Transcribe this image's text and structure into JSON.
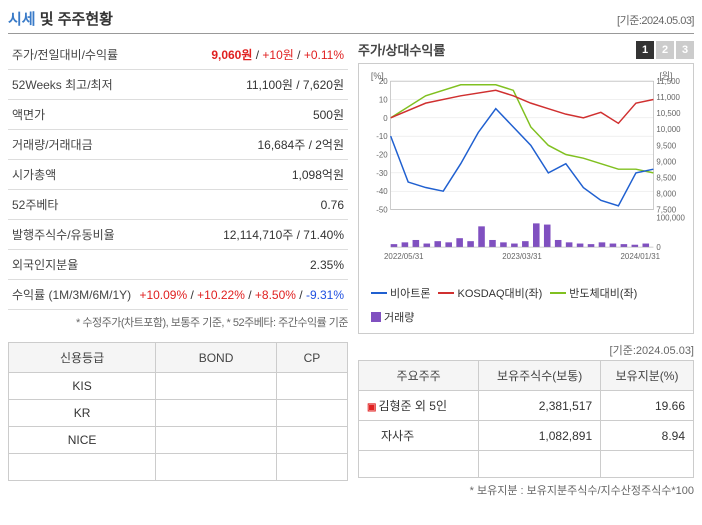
{
  "header": {
    "title_accent": "시세",
    "title_rest": " 및 주주현황",
    "date_label": "[기준:2024.05.03]"
  },
  "price_table": {
    "rows": [
      {
        "label": "주가/전일대비/수익률",
        "price": "9,060원",
        "change": "+10원",
        "pct": "+0.11%",
        "color": "red"
      },
      {
        "label": "52Weeks 최고/최저",
        "value": "11,100원 / 7,620원"
      },
      {
        "label": "액면가",
        "value": "500원"
      },
      {
        "label": "거래량/거래대금",
        "value": "16,684주 / 2억원"
      },
      {
        "label": "시가총액",
        "value": "1,098억원"
      },
      {
        "label": "52주베타",
        "value": "0.76"
      },
      {
        "label": "발행주식수/유동비율",
        "value": "12,114,710주 / 71.40%"
      },
      {
        "label": "외국인지분율",
        "value": "2.35%"
      },
      {
        "label": "수익률 (1M/3M/6M/1Y)",
        "r1": "+10.09%",
        "r2": "+10.22%",
        "r3": "+8.50%",
        "r4": "-9.31%"
      }
    ],
    "footnote": "* 수정주가(차트포함), 보통주 기준, * 52주베타: 주간수익률 기준"
  },
  "chart": {
    "title": "주가/상대수익률",
    "tabs": [
      "1",
      "2",
      "3"
    ],
    "active_tab": 0,
    "left_axis_label": "[%]",
    "right_axis_label": "[원]",
    "left_ticks": [
      20,
      10,
      0,
      -10,
      -20,
      -30,
      -40,
      -50
    ],
    "right_ticks": [
      "11,500",
      "11,000",
      "10,500",
      "10,000",
      "9,500",
      "9,000",
      "8,500",
      "8,000",
      "7,500"
    ],
    "volume_ticks": [
      "100,000",
      "0"
    ],
    "x_labels": [
      "2022/05/31",
      "2023/03/31",
      "2024/01/31"
    ],
    "grid_color": "#e0e0e0",
    "bg_color": "#ffffff",
    "series": {
      "stock": {
        "name": "비아트론",
        "color": "#2060d0",
        "points": [
          [
            0,
            -10
          ],
          [
            8,
            -35
          ],
          [
            16,
            -38
          ],
          [
            24,
            -40
          ],
          [
            32,
            -25
          ],
          [
            40,
            -8
          ],
          [
            48,
            5
          ],
          [
            56,
            -5
          ],
          [
            64,
            -15
          ],
          [
            72,
            -30
          ],
          [
            80,
            -25
          ],
          [
            88,
            -38
          ],
          [
            96,
            -45
          ],
          [
            104,
            -48
          ],
          [
            112,
            -30
          ],
          [
            120,
            -28
          ]
        ]
      },
      "kosdaq": {
        "name": "KOSDAQ대비(좌)",
        "color": "#d03030",
        "points": [
          [
            0,
            0
          ],
          [
            16,
            8
          ],
          [
            32,
            12
          ],
          [
            48,
            15
          ],
          [
            56,
            12
          ],
          [
            64,
            8
          ],
          [
            72,
            5
          ],
          [
            80,
            2
          ],
          [
            88,
            0
          ],
          [
            96,
            3
          ],
          [
            104,
            -3
          ],
          [
            112,
            8
          ],
          [
            120,
            10
          ]
        ]
      },
      "semi": {
        "name": "반도체대비(좌)",
        "color": "#80c020",
        "points": [
          [
            0,
            0
          ],
          [
            16,
            12
          ],
          [
            32,
            18
          ],
          [
            48,
            18
          ],
          [
            56,
            15
          ],
          [
            64,
            -5
          ],
          [
            72,
            -15
          ],
          [
            80,
            -20
          ],
          [
            88,
            -22
          ],
          [
            96,
            -25
          ],
          [
            104,
            -28
          ],
          [
            112,
            -28
          ],
          [
            120,
            -30
          ]
        ]
      },
      "volume": {
        "name": "거래량",
        "color": "#8050c0",
        "bars": [
          5,
          8,
          12,
          6,
          10,
          8,
          15,
          10,
          35,
          12,
          8,
          6,
          10,
          40,
          38,
          12,
          8,
          6,
          5,
          8,
          6,
          5,
          4,
          6
        ]
      }
    }
  },
  "credit_table": {
    "headers": [
      "신용등급",
      "BOND",
      "CP"
    ],
    "rows": [
      {
        "name": "KIS",
        "bond": "",
        "cp": ""
      },
      {
        "name": "KR",
        "bond": "",
        "cp": ""
      },
      {
        "name": "NICE",
        "bond": "",
        "cp": ""
      }
    ]
  },
  "shareholders": {
    "date_label": "[기준:2024.05.03]",
    "headers": [
      "주요주주",
      "보유주식수(보통)",
      "보유지분(%)"
    ],
    "rows": [
      {
        "expand": true,
        "name": "김형준 외 5인",
        "shares": "2,381,517",
        "pct": "19.66"
      },
      {
        "expand": false,
        "name": "자사주",
        "shares": "1,082,891",
        "pct": "8.94"
      }
    ],
    "footnote": "* 보유지분 : 보유지분주식수/지수산정주식수*100"
  }
}
